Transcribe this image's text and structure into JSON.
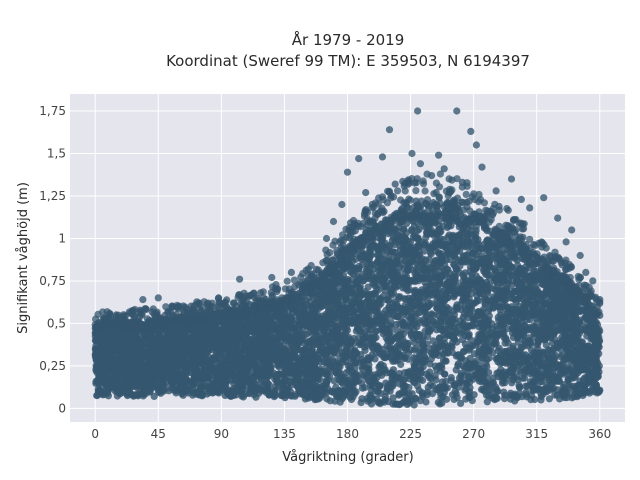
{
  "chart_data": {
    "type": "scatter",
    "title": [
      "År 1979 - 2019",
      "Koordinat (Sweref 99 TM): E 359503, N 6194397"
    ],
    "xlabel": "Vågriktning (grader)",
    "ylabel": "Signifikant våghöjd (m)",
    "xlim": [
      -18,
      378
    ],
    "ylim": [
      -0.08,
      1.85
    ],
    "x_ticks": [
      0,
      45,
      90,
      135,
      180,
      225,
      270,
      315,
      360
    ],
    "x_tick_labels": [
      "0",
      "45",
      "90",
      "135",
      "180",
      "225",
      "270",
      "315",
      "360"
    ],
    "y_ticks": [
      0,
      0.25,
      0.5,
      0.75,
      1,
      1.25,
      1.5,
      1.75
    ],
    "y_tick_labels": [
      "0",
      "0,25",
      "0,5",
      "0,75",
      "1",
      "1,25",
      "1,5",
      "1,75"
    ],
    "grid": true,
    "colors": {
      "marker": "#34566e",
      "plot_bg": "#e5e5ee",
      "grid": "#ffffff"
    },
    "envelope": {
      "x": [
        0,
        45,
        90,
        135,
        160,
        180,
        200,
        225,
        250,
        270,
        300,
        320,
        340,
        360
      ],
      "lower": [
        0.07,
        0.07,
        0.07,
        0.06,
        0.05,
        0.03,
        0.02,
        0.02,
        0.02,
        0.03,
        0.04,
        0.05,
        0.06,
        0.06
      ],
      "upper": [
        0.5,
        0.52,
        0.57,
        0.65,
        0.78,
        0.95,
        1.08,
        1.2,
        1.22,
        1.15,
        1.0,
        0.85,
        0.75,
        0.55
      ]
    },
    "outliers": [
      {
        "x": 230,
        "y": 1.75
      },
      {
        "x": 258,
        "y": 1.75
      },
      {
        "x": 210,
        "y": 1.64
      },
      {
        "x": 268,
        "y": 1.63
      },
      {
        "x": 272,
        "y": 1.55
      },
      {
        "x": 226,
        "y": 1.5
      },
      {
        "x": 245,
        "y": 1.49
      },
      {
        "x": 205,
        "y": 1.48
      },
      {
        "x": 188,
        "y": 1.47
      },
      {
        "x": 232,
        "y": 1.44
      },
      {
        "x": 276,
        "y": 1.42
      },
      {
        "x": 249,
        "y": 1.41
      },
      {
        "x": 180,
        "y": 1.39
      },
      {
        "x": 240,
        "y": 1.37
      },
      {
        "x": 297,
        "y": 1.35
      },
      {
        "x": 262,
        "y": 1.33
      },
      {
        "x": 214,
        "y": 1.32
      },
      {
        "x": 286,
        "y": 1.28
      },
      {
        "x": 193,
        "y": 1.27
      },
      {
        "x": 320,
        "y": 1.24
      },
      {
        "x": 304,
        "y": 1.23
      },
      {
        "x": 229,
        "y": 1.22
      },
      {
        "x": 252,
        "y": 1.21
      },
      {
        "x": 176,
        "y": 1.2
      },
      {
        "x": 310,
        "y": 1.18
      },
      {
        "x": 282,
        "y": 1.16
      },
      {
        "x": 330,
        "y": 1.12
      },
      {
        "x": 170,
        "y": 1.1
      },
      {
        "x": 340,
        "y": 1.05
      },
      {
        "x": 165,
        "y": 1.0
      },
      {
        "x": 336,
        "y": 0.98
      },
      {
        "x": 346,
        "y": 0.9
      },
      {
        "x": 152,
        "y": 0.82
      },
      {
        "x": 140,
        "y": 0.8
      },
      {
        "x": 126,
        "y": 0.77
      },
      {
        "x": 103,
        "y": 0.76
      },
      {
        "x": 350,
        "y": 0.8
      },
      {
        "x": 355,
        "y": 0.75
      },
      {
        "x": 168,
        "y": 0.7
      },
      {
        "x": 140,
        "y": 0.68
      },
      {
        "x": 118,
        "y": 0.68
      },
      {
        "x": 110,
        "y": 0.66
      },
      {
        "x": 45,
        "y": 0.65
      },
      {
        "x": 88,
        "y": 0.65
      },
      {
        "x": 34,
        "y": 0.64
      },
      {
        "x": 360,
        "y": 0.64
      },
      {
        "x": 99,
        "y": 0.62
      },
      {
        "x": 74,
        "y": 0.62
      },
      {
        "x": 60,
        "y": 0.6
      },
      {
        "x": 52,
        "y": 0.57
      },
      {
        "x": 25,
        "y": 0.56
      },
      {
        "x": 15,
        "y": 0.55
      },
      {
        "x": 6,
        "y": 0.53
      },
      {
        "x": 82,
        "y": 0.58
      },
      {
        "x": 130,
        "y": 0.7
      }
    ]
  }
}
